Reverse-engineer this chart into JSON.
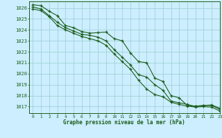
{
  "title": "Graphe pression niveau de la mer (hPa)",
  "bg_color": "#cceeff",
  "grid_color": "#99cccc",
  "line_color": "#1a5c1a",
  "xlim": [
    -0.5,
    23
  ],
  "ylim": [
    1016.4,
    1026.6
  ],
  "yticks": [
    1017,
    1018,
    1019,
    1020,
    1021,
    1022,
    1023,
    1024,
    1025,
    1026
  ],
  "xticks": [
    0,
    1,
    2,
    3,
    4,
    5,
    6,
    7,
    8,
    9,
    10,
    11,
    12,
    13,
    14,
    15,
    16,
    17,
    18,
    19,
    20,
    21,
    22,
    23
  ],
  "hours": [
    0,
    1,
    2,
    3,
    4,
    5,
    6,
    7,
    8,
    9,
    10,
    11,
    12,
    13,
    14,
    15,
    16,
    17,
    18,
    19,
    20,
    21,
    22,
    23
  ],
  "line1": [
    1026.3,
    1026.2,
    1025.7,
    1025.3,
    1024.4,
    1024.2,
    1023.85,
    1023.7,
    1023.75,
    1023.8,
    1023.2,
    1023.0,
    1021.9,
    1021.1,
    1021.0,
    1019.6,
    1019.3,
    1018.0,
    1017.8,
    1017.1,
    1017.05,
    1017.1,
    1017.15,
    1016.85
  ],
  "line2": [
    1026.1,
    1025.9,
    1025.3,
    1024.7,
    1024.2,
    1023.9,
    1023.6,
    1023.5,
    1023.35,
    1023.0,
    1022.2,
    1021.5,
    1020.8,
    1019.9,
    1019.7,
    1019.0,
    1018.5,
    1017.5,
    1017.35,
    1017.2,
    1017.0,
    1017.1,
    1017.1,
    1016.75
  ],
  "line3": [
    1025.9,
    1025.75,
    1025.2,
    1024.4,
    1024.0,
    1023.7,
    1023.4,
    1023.2,
    1023.0,
    1022.6,
    1021.8,
    1021.1,
    1020.4,
    1019.4,
    1018.6,
    1018.1,
    1017.9,
    1017.4,
    1017.2,
    1017.05,
    1016.95,
    1017.0,
    1016.95,
    1016.6
  ]
}
